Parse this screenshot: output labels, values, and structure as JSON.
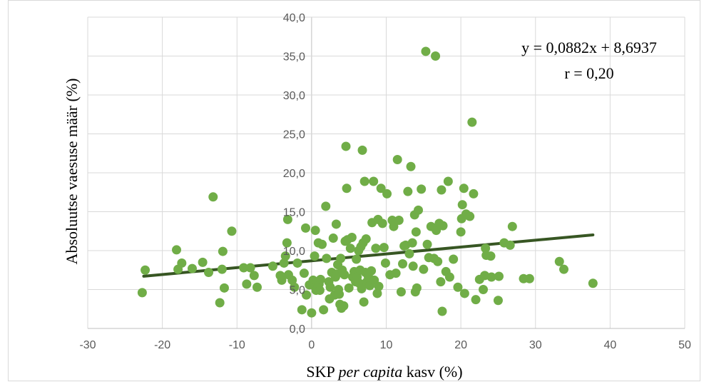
{
  "chart_data": {
    "type": "scatter",
    "title": "",
    "xlabel": {
      "prefix": "SKP ",
      "italic": "per capita",
      "suffix": " kasv (%)"
    },
    "ylabel": "Absoluutse vaesuse määr (%)",
    "xlim": [
      -30,
      50
    ],
    "ylim": [
      0,
      40
    ],
    "x_ticks": [
      -30,
      -20,
      -10,
      0,
      10,
      20,
      30,
      40,
      50
    ],
    "x_tick_labels": [
      "-30",
      "-20",
      "-10",
      "0",
      "10",
      "20",
      "30",
      "40",
      "50"
    ],
    "y_ticks": [
      0,
      5,
      10,
      15,
      20,
      25,
      30,
      35,
      40
    ],
    "y_tick_labels": [
      "0,0",
      "5,0",
      "10,0",
      "15,0",
      "20,0",
      "25,0",
      "30,0",
      "35,0",
      "40,0"
    ],
    "grid": true,
    "colors": {
      "points": "#70ad47",
      "trendline": "#375623",
      "grid": "#d9d9d9"
    },
    "trendline": {
      "slope": 0.0882,
      "intercept": 8.6937,
      "x_range": [
        -22.5,
        37.7
      ]
    },
    "annotations": {
      "equation": "y = 0,0882x + 8,6937",
      "r": "r = 0,20"
    },
    "points": [
      [
        -22.7,
        4.6
      ],
      [
        -22.3,
        7.5
      ],
      [
        -18.1,
        10.1
      ],
      [
        -17.9,
        7.6
      ],
      [
        -17.4,
        8.4
      ],
      [
        -16.0,
        7.7
      ],
      [
        -14.6,
        8.5
      ],
      [
        -13.8,
        7.2
      ],
      [
        -13.2,
        16.9
      ],
      [
        -12.3,
        3.3
      ],
      [
        -12.0,
        7.6
      ],
      [
        -11.9,
        9.9
      ],
      [
        -11.7,
        5.2
      ],
      [
        -10.7,
        12.5
      ],
      [
        -9.1,
        7.8
      ],
      [
        -8.7,
        5.7
      ],
      [
        -8.2,
        7.8
      ],
      [
        -7.7,
        6.8
      ],
      [
        -7.3,
        5.3
      ],
      [
        -5.2,
        8.0
      ],
      [
        -4.2,
        6.8
      ],
      [
        -4.0,
        6.2
      ],
      [
        -3.7,
        8.4
      ],
      [
        -3.5,
        9.3
      ],
      [
        -3.3,
        11.0
      ],
      [
        -3.2,
        14.0
      ],
      [
        -3.1,
        6.9
      ],
      [
        -2.6,
        6.2
      ],
      [
        -2.3,
        5.3
      ],
      [
        -1.9,
        8.4
      ],
      [
        -1.3,
        2.4
      ],
      [
        -1.0,
        7.1
      ],
      [
        -0.8,
        12.9
      ],
      [
        -0.7,
        4.3
      ],
      [
        -0.3,
        5.6
      ],
      [
        0.0,
        2.0
      ],
      [
        0.2,
        6.2
      ],
      [
        0.3,
        5.5
      ],
      [
        0.4,
        9.3
      ],
      [
        0.5,
        12.6
      ],
      [
        0.6,
        4.9
      ],
      [
        0.7,
        6.0
      ],
      [
        0.9,
        11.0
      ],
      [
        1.0,
        5.7
      ],
      [
        1.1,
        4.9
      ],
      [
        1.2,
        6.3
      ],
      [
        1.4,
        10.8
      ],
      [
        1.6,
        2.4
      ],
      [
        1.9,
        15.7
      ],
      [
        2.0,
        9.0
      ],
      [
        2.3,
        6.0
      ],
      [
        2.4,
        3.8
      ],
      [
        2.5,
        5.3
      ],
      [
        2.7,
        7.2
      ],
      [
        2.9,
        11.6
      ],
      [
        3.1,
        4.3
      ],
      [
        3.2,
        6.6
      ],
      [
        3.3,
        13.4
      ],
      [
        3.4,
        7.0
      ],
      [
        3.5,
        8.2
      ],
      [
        3.6,
        5.0
      ],
      [
        3.7,
        4.4
      ],
      [
        3.8,
        3.1
      ],
      [
        3.9,
        9.0
      ],
      [
        4.0,
        2.6
      ],
      [
        4.1,
        7.5
      ],
      [
        4.3,
        2.9
      ],
      [
        4.4,
        6.9
      ],
      [
        4.5,
        11.2
      ],
      [
        4.6,
        23.4
      ],
      [
        4.7,
        18.0
      ],
      [
        4.8,
        11.4
      ],
      [
        5.0,
        5.2
      ],
      [
        5.2,
        10.3
      ],
      [
        5.4,
        11.7
      ],
      [
        5.5,
        6.6
      ],
      [
        5.7,
        7.3
      ],
      [
        5.9,
        6.0
      ],
      [
        6.0,
        8.9
      ],
      [
        6.1,
        6.6
      ],
      [
        6.3,
        10.0
      ],
      [
        6.4,
        5.8
      ],
      [
        6.5,
        7.5
      ],
      [
        6.6,
        10.5
      ],
      [
        6.7,
        5.1
      ],
      [
        6.8,
        22.9
      ],
      [
        6.9,
        11.0
      ],
      [
        7.0,
        3.4
      ],
      [
        7.1,
        18.9
      ],
      [
        7.2,
        7.2
      ],
      [
        7.3,
        11.5
      ],
      [
        7.4,
        6.0
      ],
      [
        7.6,
        6.7
      ],
      [
        7.8,
        5.5
      ],
      [
        8.0,
        7.4
      ],
      [
        8.1,
        13.6
      ],
      [
        8.3,
        18.9
      ],
      [
        8.4,
        6.2
      ],
      [
        8.6,
        10.3
      ],
      [
        8.8,
        4.5
      ],
      [
        8.9,
        14.0
      ],
      [
        9.0,
        5.4
      ],
      [
        9.3,
        18.0
      ],
      [
        9.5,
        13.5
      ],
      [
        9.7,
        10.4
      ],
      [
        9.9,
        8.4
      ],
      [
        10.1,
        17.3
      ],
      [
        10.5,
        6.9
      ],
      [
        10.8,
        13.9
      ],
      [
        11.0,
        13.1
      ],
      [
        11.3,
        7.1
      ],
      [
        11.5,
        21.7
      ],
      [
        11.7,
        13.9
      ],
      [
        12.0,
        4.7
      ],
      [
        12.2,
        8.3
      ],
      [
        12.4,
        10.6
      ],
      [
        12.6,
        10.7
      ],
      [
        12.9,
        17.6
      ],
      [
        13.1,
        9.6
      ],
      [
        13.3,
        20.8
      ],
      [
        13.5,
        11.0
      ],
      [
        13.6,
        8.0
      ],
      [
        13.8,
        14.6
      ],
      [
        13.9,
        4.7
      ],
      [
        14.0,
        12.4
      ],
      [
        14.1,
        5.2
      ],
      [
        14.3,
        15.2
      ],
      [
        14.7,
        17.9
      ],
      [
        15.0,
        7.6
      ],
      [
        15.3,
        35.6
      ],
      [
        15.5,
        10.8
      ],
      [
        15.7,
        9.1
      ],
      [
        16.0,
        13.1
      ],
      [
        16.4,
        9.0
      ],
      [
        16.6,
        35.0
      ],
      [
        16.7,
        12.6
      ],
      [
        16.9,
        8.6
      ],
      [
        17.1,
        13.5
      ],
      [
        17.3,
        6.0
      ],
      [
        17.4,
        17.8
      ],
      [
        17.5,
        2.2
      ],
      [
        17.6,
        13.2
      ],
      [
        18.0,
        7.3
      ],
      [
        18.3,
        18.9
      ],
      [
        18.5,
        6.6
      ],
      [
        19.0,
        8.9
      ],
      [
        19.6,
        5.3
      ],
      [
        20.0,
        12.4
      ],
      [
        20.1,
        14.1
      ],
      [
        20.2,
        15.9
      ],
      [
        20.4,
        18.0
      ],
      [
        20.5,
        4.5
      ],
      [
        20.7,
        14.7
      ],
      [
        21.2,
        14.4
      ],
      [
        21.5,
        26.5
      ],
      [
        21.7,
        17.3
      ],
      [
        22.0,
        3.7
      ],
      [
        22.5,
        6.3
      ],
      [
        23.0,
        5.0
      ],
      [
        23.2,
        6.8
      ],
      [
        23.3,
        10.3
      ],
      [
        23.4,
        9.4
      ],
      [
        24.0,
        9.3
      ],
      [
        24.1,
        6.6
      ],
      [
        25.0,
        3.6
      ],
      [
        25.1,
        6.7
      ],
      [
        25.8,
        11.0
      ],
      [
        26.6,
        10.7
      ],
      [
        26.9,
        13.1
      ],
      [
        28.4,
        6.4
      ],
      [
        29.2,
        6.4
      ],
      [
        33.2,
        8.6
      ],
      [
        33.8,
        7.6
      ],
      [
        37.7,
        5.8
      ]
    ]
  }
}
